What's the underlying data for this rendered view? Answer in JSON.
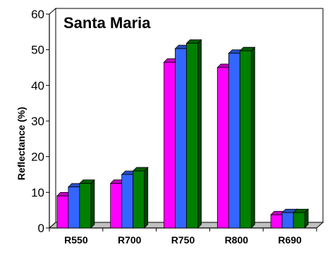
{
  "chart_data": {
    "type": "bar",
    "title": "Santa Maria",
    "xlabel": "",
    "ylabel": "Reflectance (%)",
    "ylim": [
      0,
      60
    ],
    "yticks": [
      0,
      10,
      20,
      30,
      40,
      50,
      60
    ],
    "grid": false,
    "categories": [
      "R550",
      "R700",
      "R750",
      "R800",
      "R690"
    ],
    "series": [
      {
        "color": "#ff00ff",
        "values": [
          9.0,
          12.5,
          46.5,
          45.0,
          3.7
        ]
      },
      {
        "color": "#3366ff",
        "values": [
          11.5,
          15.0,
          50.3,
          49.0,
          4.3
        ]
      },
      {
        "color": "#008000",
        "values": [
          12.5,
          16.0,
          51.8,
          49.7,
          4.3
        ]
      }
    ]
  }
}
